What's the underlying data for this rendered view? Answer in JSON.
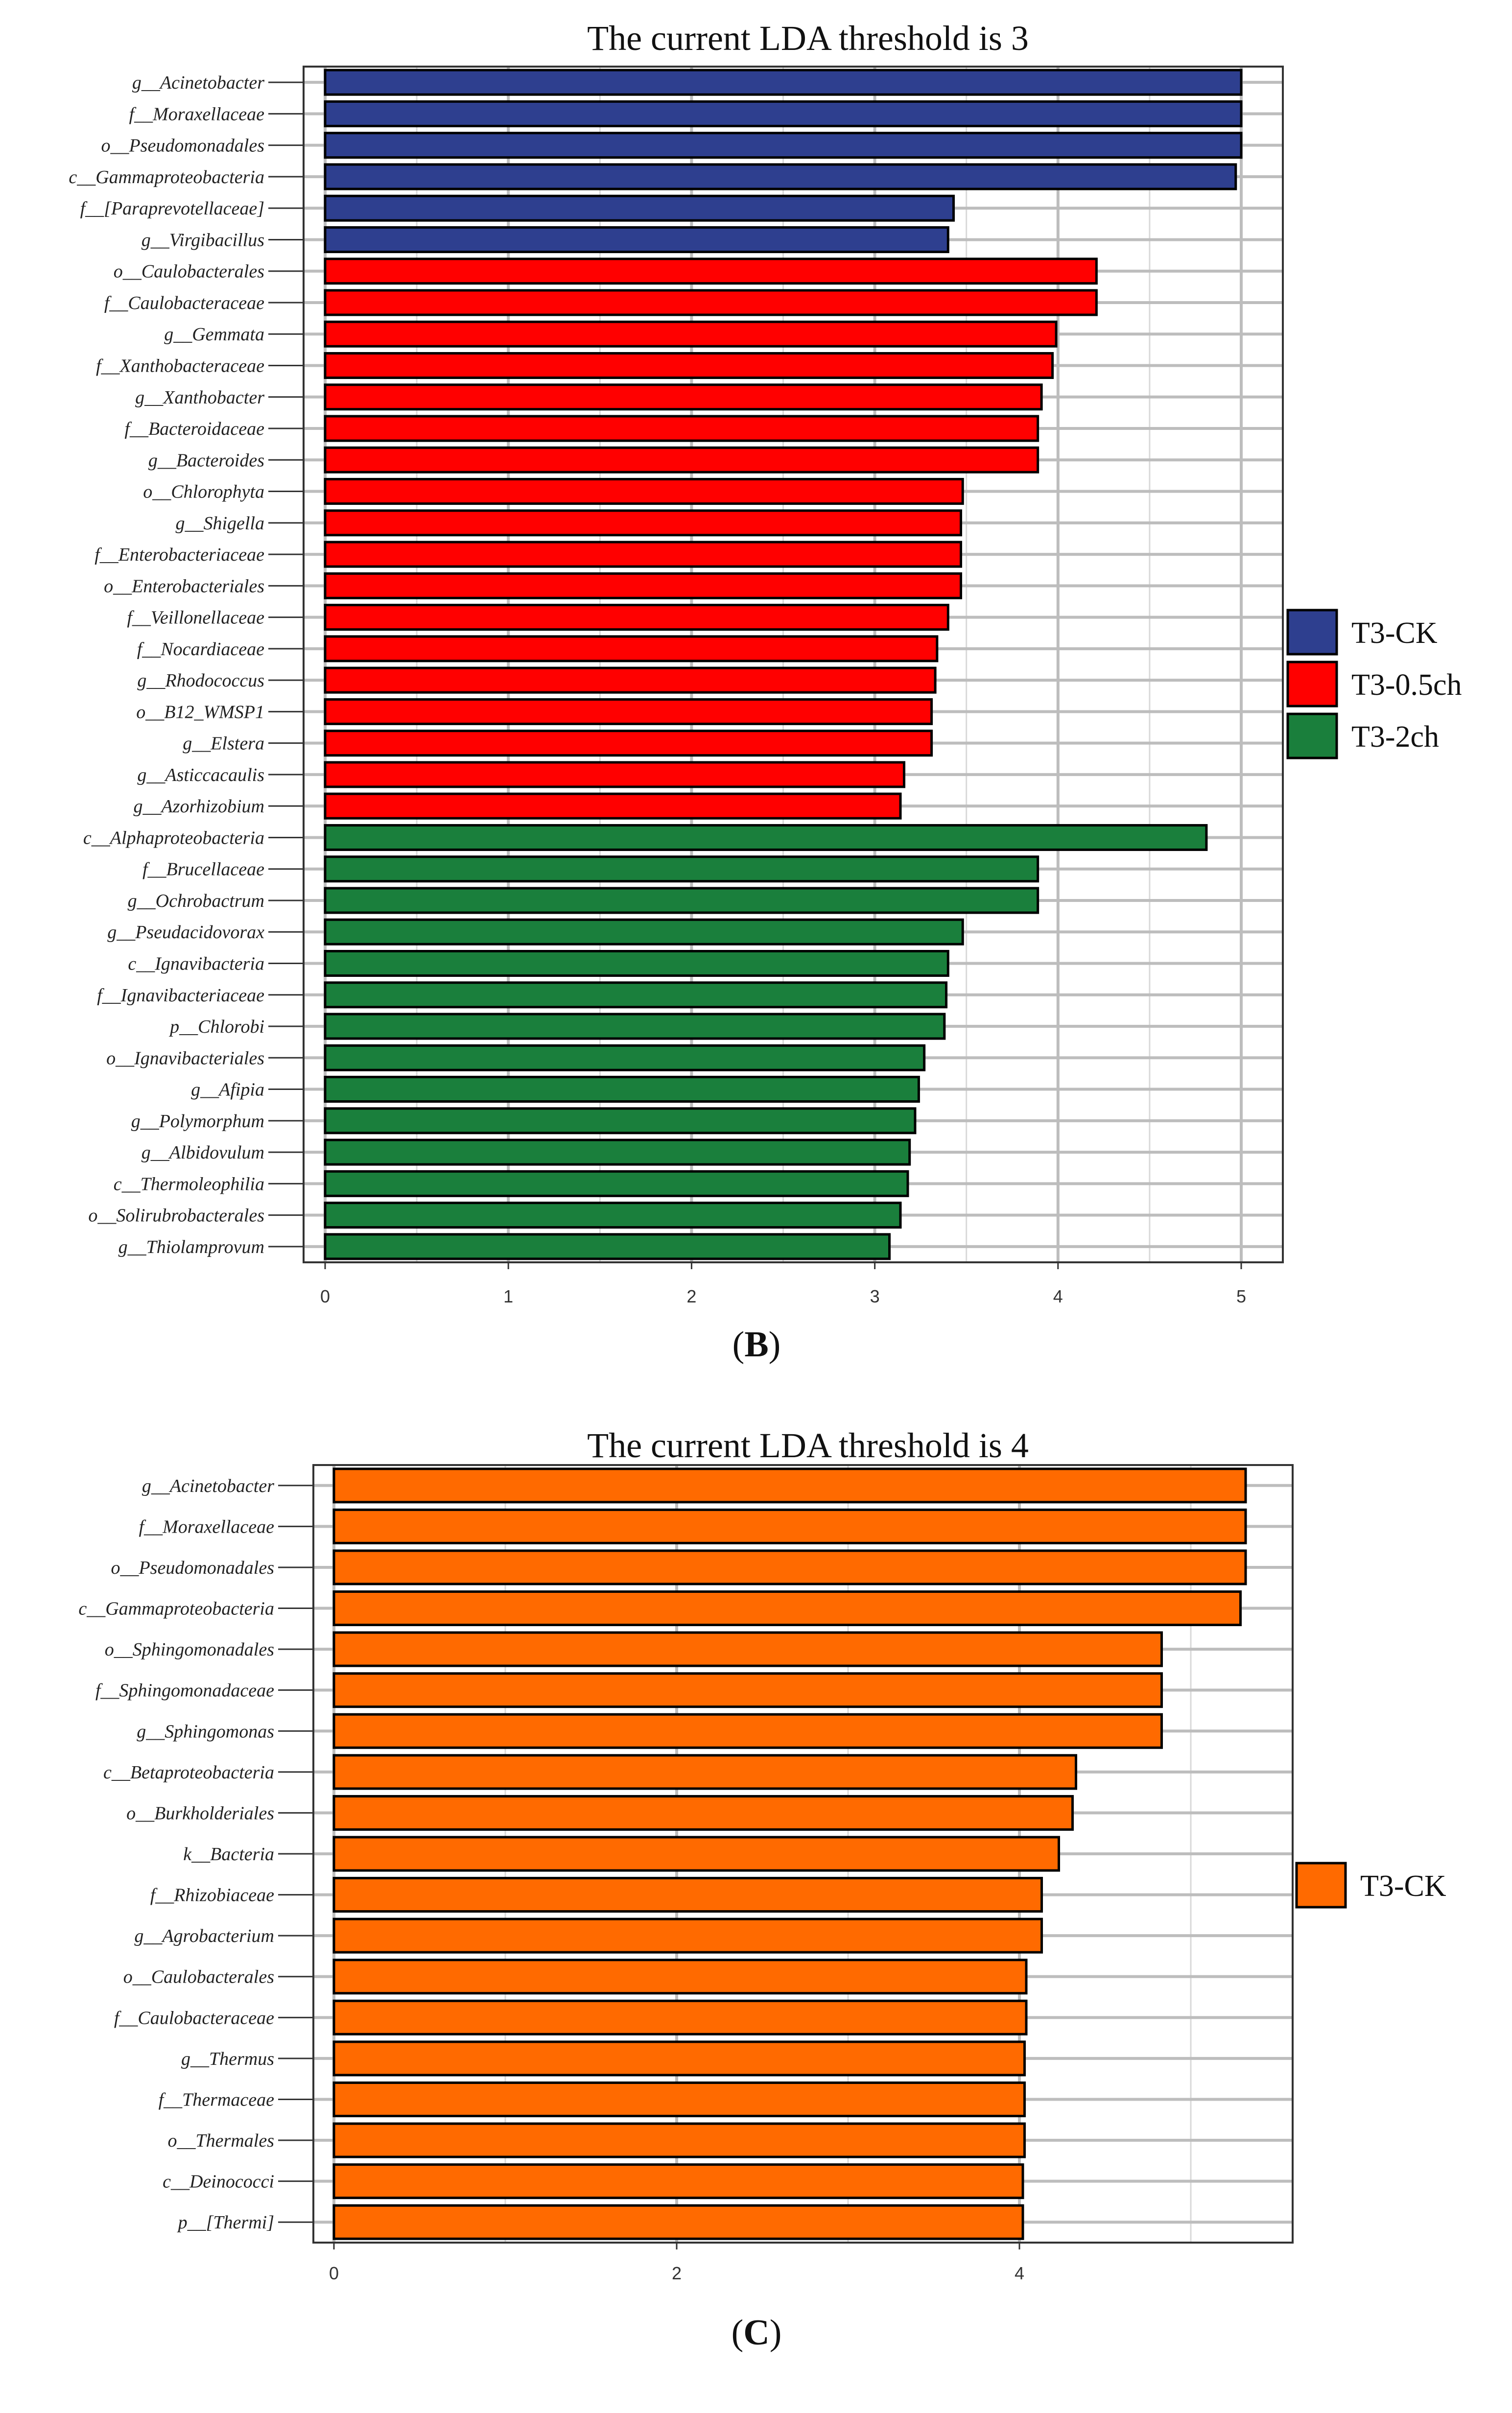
{
  "chart_data": [
    {
      "type": "bar",
      "orientation": "horizontal",
      "panel_label": "B",
      "title": "The current LDA threshold is 3",
      "xlim": [
        0,
        5.25
      ],
      "xticks": [
        "0",
        "1",
        "2",
        "3",
        "4",
        "5"
      ],
      "legend": {
        "position": "right",
        "entries": [
          {
            "name": "T3-CK",
            "color": "#2E3F8F"
          },
          {
            "name": "T3-0.5ch",
            "color": "#FF0000"
          },
          {
            "name": "T3-2ch",
            "color": "#1A7F3C"
          }
        ]
      },
      "bars": [
        {
          "label": "g__Acinetobacter",
          "value": 5.0,
          "group": "T3-CK"
        },
        {
          "label": "f__Moraxellaceae",
          "value": 5.0,
          "group": "T3-CK"
        },
        {
          "label": "o__Pseudomonadales",
          "value": 5.0,
          "group": "T3-CK"
        },
        {
          "label": "c__Gammaproteobacteria",
          "value": 4.97,
          "group": "T3-CK"
        },
        {
          "label": "f__[Paraprevotellaceae]",
          "value": 3.43,
          "group": "T3-CK"
        },
        {
          "label": "g__Virgibacillus",
          "value": 3.4,
          "group": "T3-CK"
        },
        {
          "label": "o__Caulobacterales",
          "value": 4.21,
          "group": "T3-0.5ch"
        },
        {
          "label": "f__Caulobacteraceae",
          "value": 4.21,
          "group": "T3-0.5ch"
        },
        {
          "label": "g__Gemmata",
          "value": 3.99,
          "group": "T3-0.5ch"
        },
        {
          "label": "f__Xanthobacteraceae",
          "value": 3.97,
          "group": "T3-0.5ch"
        },
        {
          "label": "g__Xanthobacter",
          "value": 3.91,
          "group": "T3-0.5ch"
        },
        {
          "label": "f__Bacteroidaceae",
          "value": 3.89,
          "group": "T3-0.5ch"
        },
        {
          "label": "g__Bacteroides",
          "value": 3.89,
          "group": "T3-0.5ch"
        },
        {
          "label": "o__Chlorophyta",
          "value": 3.48,
          "group": "T3-0.5ch"
        },
        {
          "label": "g__Shigella",
          "value": 3.47,
          "group": "T3-0.5ch"
        },
        {
          "label": "f__Enterobacteriaceae",
          "value": 3.47,
          "group": "T3-0.5ch"
        },
        {
          "label": "o__Enterobacteriales",
          "value": 3.47,
          "group": "T3-0.5ch"
        },
        {
          "label": "f__Veillonellaceae",
          "value": 3.4,
          "group": "T3-0.5ch"
        },
        {
          "label": "f__Nocardiaceae",
          "value": 3.34,
          "group": "T3-0.5ch"
        },
        {
          "label": "g__Rhodococcus",
          "value": 3.33,
          "group": "T3-0.5ch"
        },
        {
          "label": "o__B12_WMSP1",
          "value": 3.31,
          "group": "T3-0.5ch"
        },
        {
          "label": "g__Elstera",
          "value": 3.31,
          "group": "T3-0.5ch"
        },
        {
          "label": "g__Asticcacaulis",
          "value": 3.16,
          "group": "T3-0.5ch"
        },
        {
          "label": "g__Azorhizobium",
          "value": 3.14,
          "group": "T3-0.5ch"
        },
        {
          "label": "c__Alphaproteobacteria",
          "value": 4.81,
          "group": "T3-2ch"
        },
        {
          "label": "f__Brucellaceae",
          "value": 3.89,
          "group": "T3-2ch"
        },
        {
          "label": "g__Ochrobactrum",
          "value": 3.89,
          "group": "T3-2ch"
        },
        {
          "label": "g__Pseudacidovorax",
          "value": 3.48,
          "group": "T3-2ch"
        },
        {
          "label": "c__Ignavibacteria",
          "value": 3.4,
          "group": "T3-2ch"
        },
        {
          "label": "f__Ignavibacteriaceae",
          "value": 3.39,
          "group": "T3-2ch"
        },
        {
          "label": "p__Chlorobi",
          "value": 3.38,
          "group": "T3-2ch"
        },
        {
          "label": "o__Ignavibacteriales",
          "value": 3.27,
          "group": "T3-2ch"
        },
        {
          "label": "g__Afipia",
          "value": 3.24,
          "group": "T3-2ch"
        },
        {
          "label": "g__Polymorphum",
          "value": 3.22,
          "group": "T3-2ch"
        },
        {
          "label": "g__Albidovulum",
          "value": 3.19,
          "group": "T3-2ch"
        },
        {
          "label": "c__Thermoleophilia",
          "value": 3.18,
          "group": "T3-2ch"
        },
        {
          "label": "o__Solirubrobacterales",
          "value": 3.14,
          "group": "T3-2ch"
        },
        {
          "label": "g__Thiolamprovum",
          "value": 3.08,
          "group": "T3-2ch"
        }
      ]
    },
    {
      "type": "bar",
      "orientation": "horizontal",
      "panel_label": "C",
      "title": "The current LDA threshold is 4",
      "xlim": [
        0,
        5.55
      ],
      "xticks": [
        "0",
        "2",
        "4"
      ],
      "legend": {
        "position": "right",
        "entries": [
          {
            "name": "T3-CK",
            "color": "#FF6A00"
          }
        ]
      },
      "bars": [
        {
          "label": "g__Acinetobacter",
          "value": 5.32,
          "group": "T3-CK"
        },
        {
          "label": "f__Moraxellaceae",
          "value": 5.32,
          "group": "T3-CK"
        },
        {
          "label": "o__Pseudomonadales",
          "value": 5.32,
          "group": "T3-CK"
        },
        {
          "label": "c__Gammaproteobacteria",
          "value": 5.29,
          "group": "T3-CK"
        },
        {
          "label": "o__Sphingomonadales",
          "value": 4.83,
          "group": "T3-CK"
        },
        {
          "label": "f__Sphingomonadaceae",
          "value": 4.83,
          "group": "T3-CK"
        },
        {
          "label": "g__Sphingomonas",
          "value": 4.83,
          "group": "T3-CK"
        },
        {
          "label": "c__Betaproteobacteria",
          "value": 4.33,
          "group": "T3-CK"
        },
        {
          "label": "o__Burkholderiales",
          "value": 4.31,
          "group": "T3-CK"
        },
        {
          "label": "k__Bacteria",
          "value": 4.23,
          "group": "T3-CK"
        },
        {
          "label": "f__Rhizobiaceae",
          "value": 4.13,
          "group": "T3-CK"
        },
        {
          "label": "g__Agrobacterium",
          "value": 4.13,
          "group": "T3-CK"
        },
        {
          "label": "o__Caulobacterales",
          "value": 4.04,
          "group": "T3-CK"
        },
        {
          "label": "f__Caulobacteraceae",
          "value": 4.04,
          "group": "T3-CK"
        },
        {
          "label": "g__Thermus",
          "value": 4.03,
          "group": "T3-CK"
        },
        {
          "label": "f__Thermaceae",
          "value": 4.03,
          "group": "T3-CK"
        },
        {
          "label": "o__Thermales",
          "value": 4.03,
          "group": "T3-CK"
        },
        {
          "label": "c__Deinococci",
          "value": 4.02,
          "group": "T3-CK"
        },
        {
          "label": "p__[Thermi]",
          "value": 4.02,
          "group": "T3-CK"
        }
      ]
    }
  ]
}
